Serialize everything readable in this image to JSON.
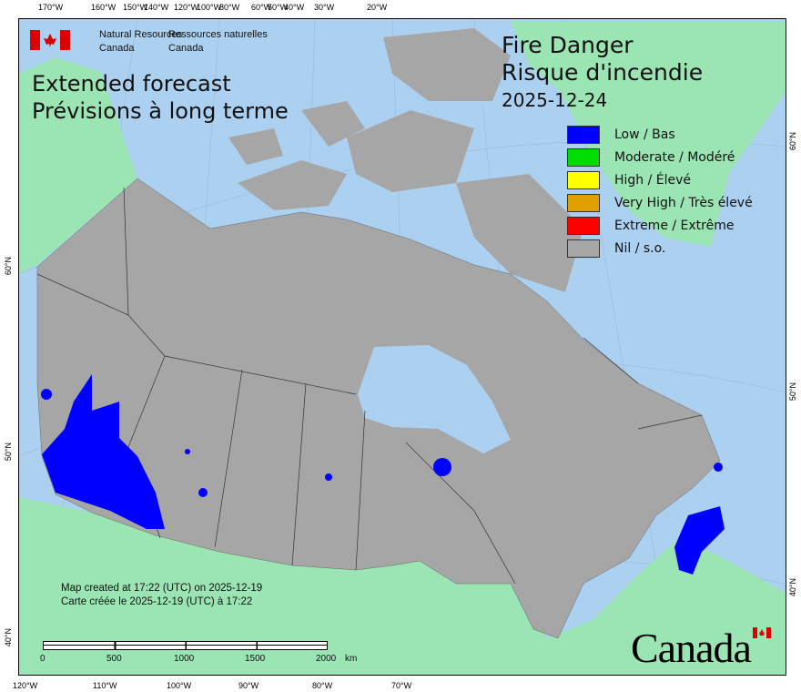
{
  "header": {
    "agency_en": "Natural Resources",
    "agency_en2": "Canada",
    "agency_fr": "Ressources naturelles",
    "agency_fr2": "Canada"
  },
  "forecast": {
    "line1": "Extended forecast",
    "line2": "Prévisions à long terme"
  },
  "title": {
    "line1": "Fire Danger",
    "line2": "Risque d'incendie",
    "date": "2025-12-24"
  },
  "legend": [
    {
      "label": "Low / Bas",
      "color": "#0000ff"
    },
    {
      "label": "Moderate / Modéré",
      "color": "#00dd00"
    },
    {
      "label": "High / Élevé",
      "color": "#ffff00"
    },
    {
      "label": "Very High / Très élevé",
      "color": "#e0a000"
    },
    {
      "label": "Extreme / Extrême",
      "color": "#ff0000"
    },
    {
      "label": "Nil / s.o.",
      "color": "#a6a6a6"
    }
  ],
  "created": {
    "en": "Map created at 17:22 (UTC) on 2025-12-19",
    "fr": "Carte créée le 2025-12-19 (UTC) à 17:22"
  },
  "scale": {
    "labels": [
      "0",
      "500",
      "1000",
      "1500",
      "2000"
    ],
    "unit": "km"
  },
  "wordmark": "Canada",
  "ticks": {
    "top": [
      "170°W",
      "160°W",
      "150°W",
      "140°W",
      "120°W",
      "100°W",
      "80°W",
      "60°W",
      "50°W",
      "40°W",
      "30°W",
      "20°W"
    ],
    "bottom": [
      "120°W",
      "110°W",
      "100°W",
      "90°W",
      "80°W",
      "70°W"
    ],
    "left": [
      "60°N",
      "50°N",
      "40°N"
    ],
    "right": [
      "60°N",
      "50°N",
      "40°N"
    ]
  },
  "colors": {
    "water": "#acd0f0",
    "land_nil": "#a6a6a6",
    "foreign_land": "#9be4b4"
  }
}
